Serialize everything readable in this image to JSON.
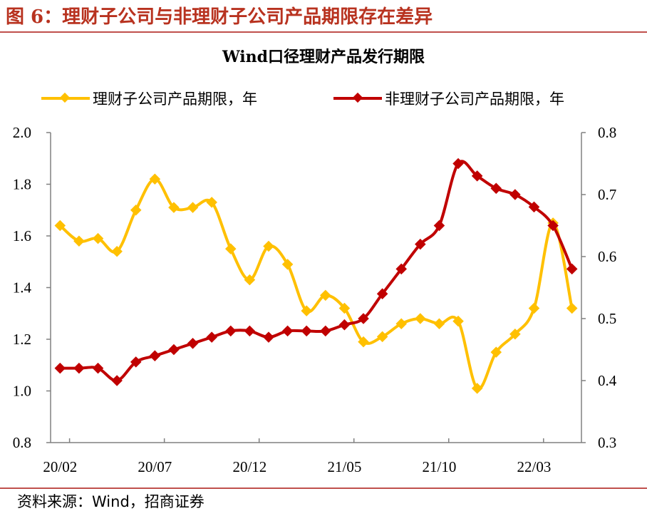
{
  "figure": {
    "title": "图 6：理财子公司与非理财子公司产品期限存在差异",
    "source": "资料来源：Wind，招商证券"
  },
  "colors": {
    "accent": "#b8321f",
    "series_wmc": "#FFC000",
    "series_non": "#C00000"
  },
  "chart_data": {
    "type": "line",
    "title": "Wind口径理财产品发行期限",
    "legend_position": "top",
    "grid": false,
    "x_tick_labels": [
      "20/02",
      "20/07",
      "20/12",
      "21/05",
      "21/10",
      "22/03"
    ],
    "x": [
      "20/02",
      "20/03",
      "20/04",
      "20/05",
      "20/06",
      "20/07",
      "20/08",
      "20/09",
      "20/10",
      "20/11",
      "20/12",
      "21/01",
      "21/02",
      "21/03",
      "21/04",
      "21/05",
      "21/06",
      "21/07",
      "21/08",
      "21/09",
      "21/10",
      "21/11",
      "21/12",
      "22/01",
      "22/02",
      "22/03",
      "22/04",
      "22/05"
    ],
    "left_axis": {
      "range": [
        0.8,
        2.0
      ],
      "ticks": [
        "0.8",
        "1.0",
        "1.2",
        "1.4",
        "1.6",
        "1.8",
        "2.0"
      ]
    },
    "right_axis": {
      "range": [
        0.3,
        0.8
      ],
      "ticks": [
        "0.3",
        "0.4",
        "0.5",
        "0.6",
        "0.7",
        "0.8"
      ]
    },
    "series": [
      {
        "name": "理财子公司产品期限，年",
        "axis": "left",
        "color": "#FFC000",
        "values": [
          1.64,
          1.58,
          1.59,
          1.54,
          1.7,
          1.82,
          1.71,
          1.71,
          1.73,
          1.55,
          1.43,
          1.56,
          1.49,
          1.31,
          1.37,
          1.32,
          1.19,
          1.21,
          1.26,
          1.28,
          1.26,
          1.27,
          1.01,
          1.15,
          1.22,
          1.32,
          1.65,
          1.32
        ]
      },
      {
        "name": "非理财子公司产品期限，年",
        "axis": "right",
        "color": "#C00000",
        "values": [
          0.42,
          0.42,
          0.42,
          0.4,
          0.43,
          0.44,
          0.45,
          0.46,
          0.47,
          0.48,
          0.48,
          0.47,
          0.48,
          0.48,
          0.48,
          0.49,
          0.5,
          0.54,
          0.58,
          0.62,
          0.65,
          0.75,
          0.73,
          0.71,
          0.7,
          0.68,
          0.65,
          0.58
        ]
      }
    ]
  }
}
